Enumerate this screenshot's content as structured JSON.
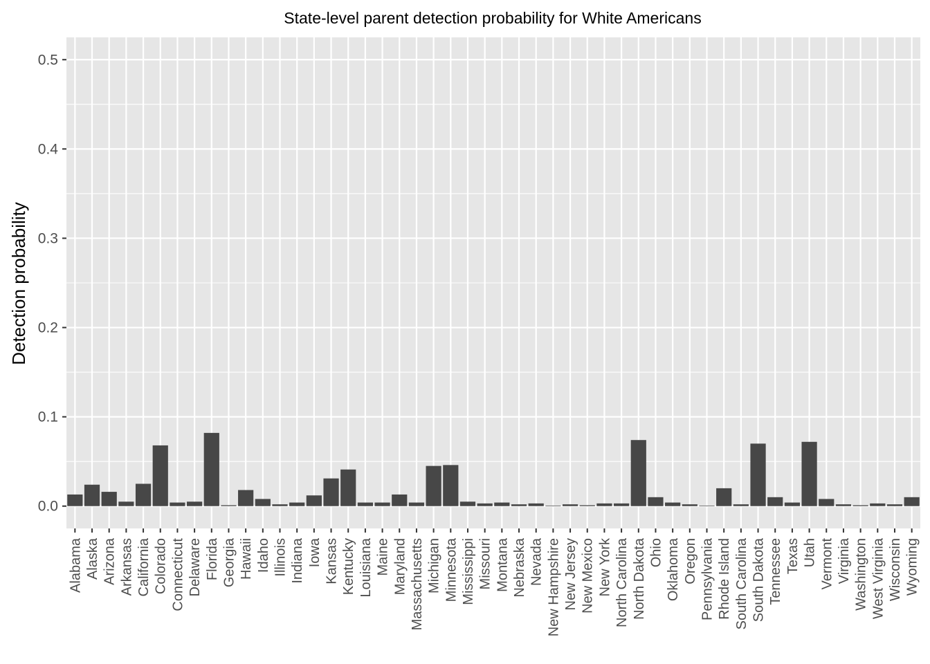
{
  "chart_data": {
    "type": "bar",
    "title": "State-level parent detection probability for White Americans",
    "xlabel": "",
    "ylabel": "Detection probability",
    "ylim": [
      -0.025,
      0.525
    ],
    "yticks": [
      0.0,
      0.1,
      0.2,
      0.3,
      0.4,
      0.5
    ],
    "ytick_labels": [
      "0.0",
      "0.1",
      "0.2",
      "0.3",
      "0.4",
      "0.5"
    ],
    "grid": true,
    "bar_color": "#474747",
    "panel_color": "#e6e6e6",
    "grid_color": "#ffffff",
    "categories": [
      "Alabama",
      "Alaska",
      "Arizona",
      "Arkansas",
      "California",
      "Colorado",
      "Connecticut",
      "Delaware",
      "Florida",
      "Georgia",
      "Hawaii",
      "Idaho",
      "Illinois",
      "Indiana",
      "Iowa",
      "Kansas",
      "Kentucky",
      "Louisiana",
      "Maine",
      "Maryland",
      "Massachusetts",
      "Michigan",
      "Minnesota",
      "Mississippi",
      "Missouri",
      "Montana",
      "Nebraska",
      "Nevada",
      "New Hampshire",
      "New Jersey",
      "New Mexico",
      "New York",
      "North Carolina",
      "North Dakota",
      "Ohio",
      "Oklahoma",
      "Oregon",
      "Pennsylvania",
      "Rhode Island",
      "South Carolina",
      "South Dakota",
      "Tennessee",
      "Texas",
      "Utah",
      "Vermont",
      "Virginia",
      "Washington",
      "West Virginia",
      "Wisconsin",
      "Wyoming"
    ],
    "values": [
      0.013,
      0.024,
      0.016,
      0.005,
      0.025,
      0.068,
      0.004,
      0.005,
      0.082,
      0.001,
      0.018,
      0.008,
      0.002,
      0.004,
      0.012,
      0.031,
      0.041,
      0.004,
      0.004,
      0.013,
      0.004,
      0.045,
      0.046,
      0.005,
      0.003,
      0.004,
      0.002,
      0.003,
      0.0005,
      0.002,
      0.001,
      0.003,
      0.003,
      0.074,
      0.01,
      0.004,
      0.002,
      0.0005,
      0.02,
      0.002,
      0.07,
      0.01,
      0.004,
      0.072,
      0.008,
      0.002,
      0.001,
      0.003,
      0.002,
      0.01
    ]
  }
}
